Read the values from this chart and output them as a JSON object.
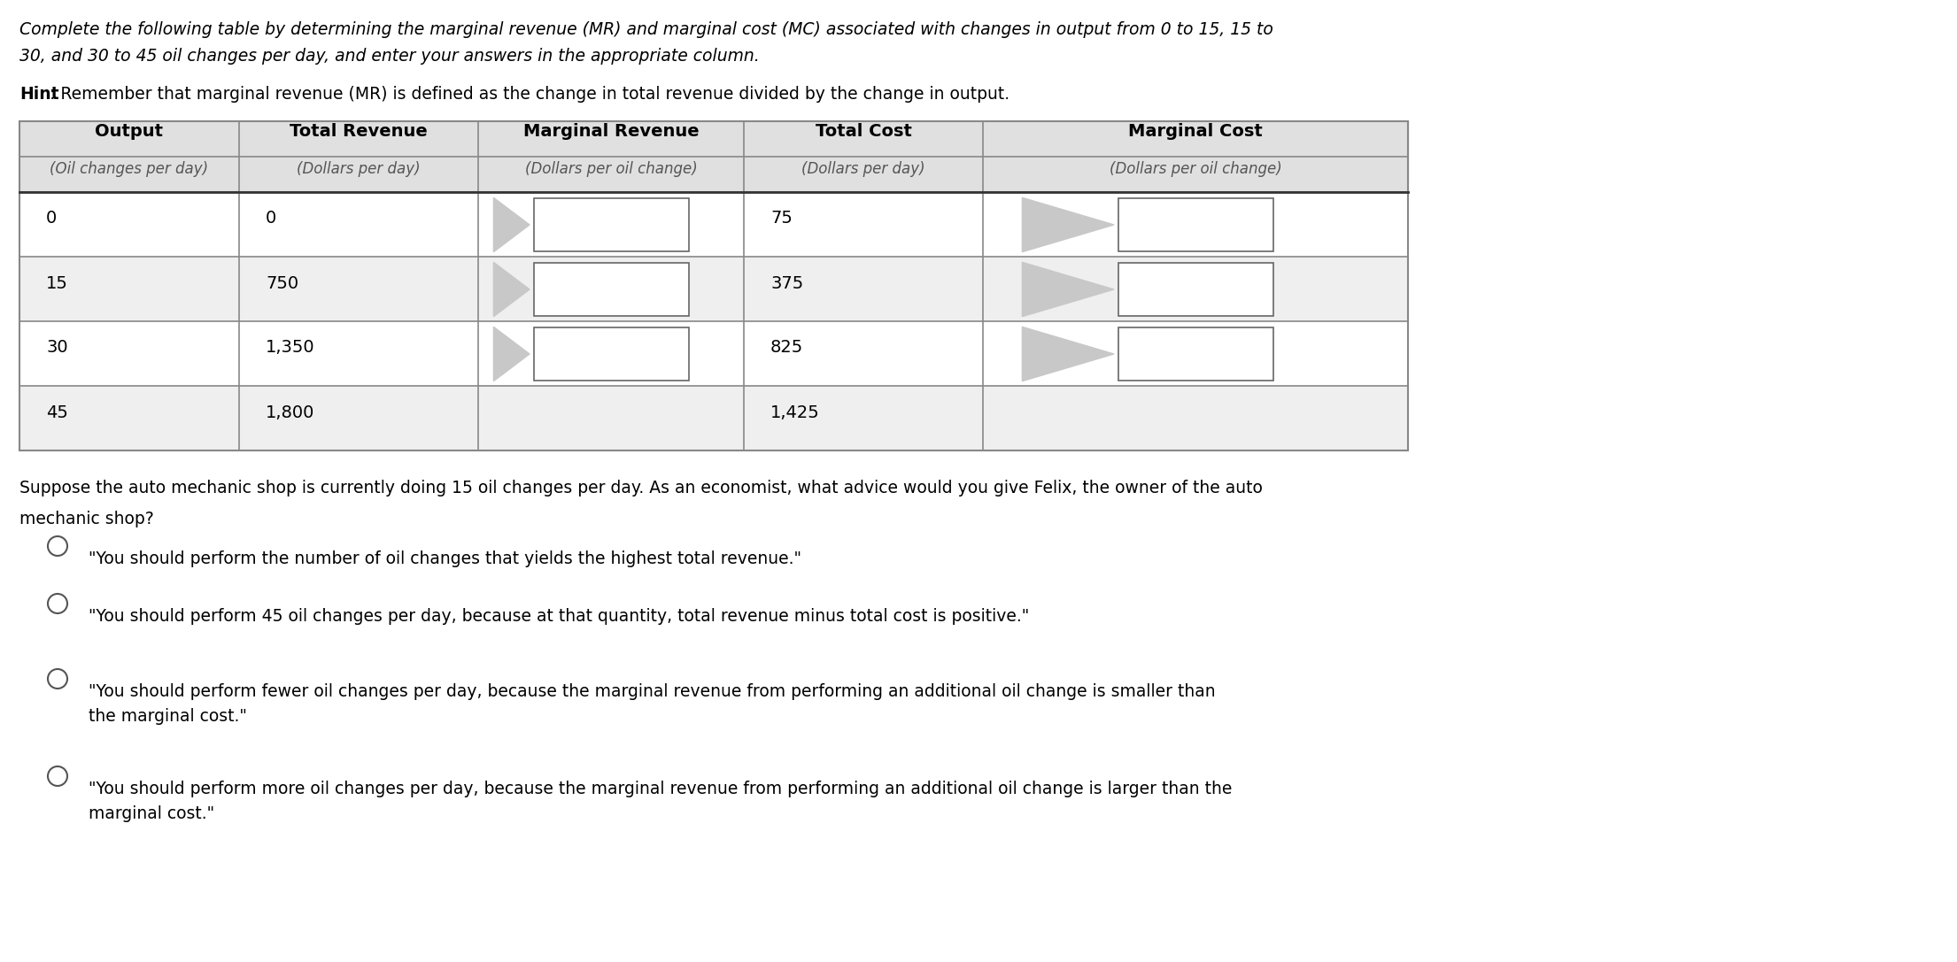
{
  "title_line1": "Complete the following table by determining the marginal revenue (MR) and marginal cost (MC) associated with changes in output from 0 to 15, 15 to",
  "title_line2": "30, and 30 to 45 oil changes per day, and enter your answers in the appropriate column.",
  "hint_bold": "Hint",
  "hint_rest": ": Remember that marginal revenue (MR) is defined as the change in total revenue divided by the change in output.",
  "table_headers_row1": [
    "Output",
    "Total Revenue",
    "Marginal Revenue",
    "Total Cost",
    "Marginal Cost"
  ],
  "table_headers_row2": [
    "(Oil changes per day)",
    "(Dollars per day)",
    "(Dollars per oil change)",
    "(Dollars per day)",
    "(Dollars per oil change)"
  ],
  "table_data": [
    [
      "0",
      "0",
      "",
      "75",
      ""
    ],
    [
      "15",
      "750",
      "",
      "375",
      ""
    ],
    [
      "30",
      "1,350",
      "",
      "825",
      ""
    ],
    [
      "45",
      "1,800",
      "",
      "1,425",
      ""
    ]
  ],
  "question_line1": "Suppose the auto mechanic shop is currently doing 15 oil changes per day. As an economist, what advice would you give Felix, the owner of the auto",
  "question_line2": "mechanic shop?",
  "options": [
    "\"You should perform the number of oil changes that yields the highest total revenue.\"",
    "\"You should perform 45 oil changes per day, because at that quantity, total revenue minus total cost is positive.\"",
    "\"You should perform fewer oil changes per day, because the marginal revenue from performing an additional oil change is smaller than\nthe marginal cost.\"",
    "\"You should perform more oil changes per day, because the marginal revenue from performing an additional oil change is larger than the\nmarginal cost.\""
  ],
  "bg_color": "#ffffff",
  "text_color": "#000000",
  "header_gray": "#e8e8e8",
  "row_gray": "#efefef",
  "arrow_color": "#c8c8c8",
  "box_border": "#666666",
  "table_border": "#888888"
}
